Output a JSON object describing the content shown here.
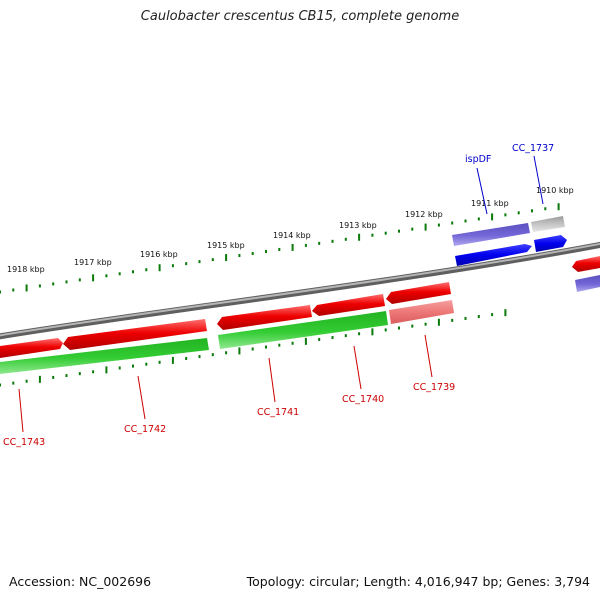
{
  "title": "Caulobacter crescentus CB15, complete genome",
  "footer": {
    "accession": "Accession: NC_002696",
    "topology": "Topology: circular; Length: 4,016,947 bp; Genes: 3,794"
  },
  "colors": {
    "backbone": "#8a8a8a",
    "forward_cds": "#e00000",
    "reverse_cds": "#1fb81f",
    "pseudo_cds": "#f07a7a",
    "blue_gene": "#0000ee",
    "purple_gene": "#6a5acd",
    "gray_gene": "#bdbdbd",
    "tick": "#0a7a0a",
    "label_red": "#cc0000",
    "label_blue": "#0000cc"
  },
  "ruler": {
    "labels": [
      "1918 kbp",
      "1917 kbp",
      "1916 kbp",
      "1915 kbp",
      "1914 kbp",
      "1913 kbp",
      "1912 kbp",
      "1911 kbp",
      "1910 kbp"
    ]
  },
  "genes": {
    "labels_red": [
      "CC_1743",
      "CC_1742",
      "CC_1741",
      "CC_1740",
      "CC_1739"
    ],
    "labels_blue": [
      "ispDF",
      "CC_1737"
    ]
  }
}
